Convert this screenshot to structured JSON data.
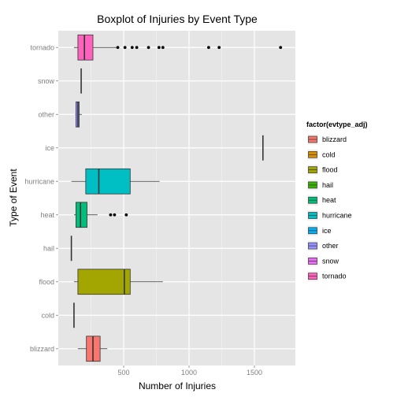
{
  "chart_data": {
    "type": "boxplot",
    "title": "Boxplot of Injuries by Event Type",
    "xlabel": "Number of Injuries",
    "ylabel": "Type of Event",
    "xlim": [
      0,
      1750
    ],
    "x_ticks": [
      {
        "value": 500,
        "label": "500"
      },
      {
        "value": 1000,
        "label": "1000"
      },
      {
        "value": 1500,
        "label": "1500"
      }
    ],
    "grid": true,
    "categories": [
      "blizzard",
      "cold",
      "flood",
      "hail",
      "heat",
      "hurricane",
      "ice",
      "other",
      "snow",
      "tornado"
    ],
    "boxes": [
      {
        "name": "blizzard",
        "color": "#F8766D",
        "whisker_low": 150,
        "q1": 215,
        "median": 265,
        "q3": 320,
        "whisker_high": 375,
        "outliers": []
      },
      {
        "name": "cold",
        "color": "#D89000",
        "whisker_low": 120,
        "q1": 120,
        "median": 120,
        "q3": 120,
        "whisker_high": 120,
        "outliers": []
      },
      {
        "name": "flood",
        "color": "#A3A500",
        "whisker_low": 120,
        "q1": 150,
        "median": 505,
        "q3": 550,
        "whisker_high": 800,
        "outliers": []
      },
      {
        "name": "hail",
        "color": "#39B600",
        "whisker_low": 100,
        "q1": 100,
        "median": 100,
        "q3": 100,
        "whisker_high": 100,
        "outliers": []
      },
      {
        "name": "heat",
        "color": "#00BF7D",
        "whisker_low": 120,
        "q1": 135,
        "median": 170,
        "q3": 220,
        "whisker_high": 300,
        "outliers": [
          400,
          430,
          520
        ]
      },
      {
        "name": "hurricane",
        "color": "#00BFC4",
        "whisker_low": 100,
        "q1": 210,
        "median": 310,
        "q3": 550,
        "whisker_high": 775,
        "outliers": []
      },
      {
        "name": "ice",
        "color": "#00B0F6",
        "whisker_low": 1565,
        "q1": 1565,
        "median": 1565,
        "q3": 1565,
        "whisker_high": 1565,
        "outliers": []
      },
      {
        "name": "other",
        "color": "#9590FF",
        "whisker_low": 130,
        "q1": 135,
        "median": 150,
        "q3": 160,
        "whisker_high": 180,
        "outliers": []
      },
      {
        "name": "snow",
        "color": "#E76BF3",
        "whisker_low": 175,
        "q1": 175,
        "median": 175,
        "q3": 175,
        "whisker_high": 175,
        "outliers": []
      },
      {
        "name": "tornado",
        "color": "#FF62BC",
        "whisker_low": 120,
        "q1": 150,
        "median": 200,
        "q3": 265,
        "whisker_high": 455,
        "outliers": [
          455,
          510,
          565,
          600,
          690,
          770,
          800,
          1150,
          1230,
          1700
        ]
      }
    ],
    "legend": {
      "title": "factor(evtype_adj)",
      "placement": "right"
    }
  }
}
